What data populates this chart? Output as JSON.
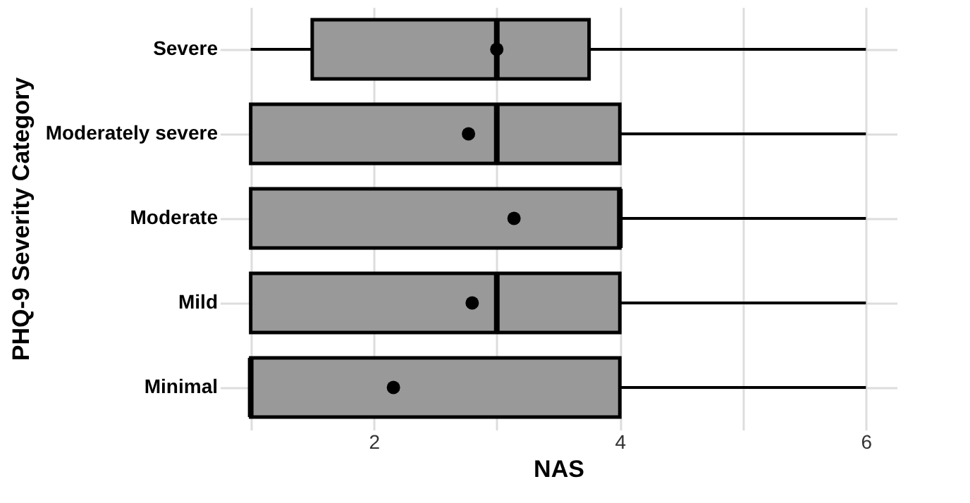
{
  "chart_data": {
    "type": "box",
    "orientation": "horizontal",
    "xlabel": "NAS",
    "ylabel": "PHQ-9 Severity Category",
    "categories": [
      "Severe",
      "Moderately severe",
      "Moderate",
      "Mild",
      "Minimal"
    ],
    "boxes": [
      {
        "low": 1,
        "q1": 1.5,
        "median": 3,
        "q3": 3.75,
        "high": 6,
        "mean": 3.0
      },
      {
        "low": 1,
        "q1": 1,
        "median": 3,
        "q3": 4,
        "high": 6,
        "mean": 2.77
      },
      {
        "low": 1,
        "q1": 1,
        "median": 4,
        "q3": 4,
        "high": 6,
        "mean": 3.14
      },
      {
        "low": 1,
        "q1": 1,
        "median": 3,
        "q3": 4,
        "high": 6,
        "mean": 2.8
      },
      {
        "low": 1,
        "q1": 1,
        "median": 1,
        "q3": 4,
        "high": 6,
        "mean": 2.16
      }
    ],
    "color": "#999999",
    "xlim": [
      0.75,
      6.25
    ],
    "xticks": [
      {
        "value": 1,
        "label": null
      },
      2,
      {
        "value": 3,
        "label": null
      },
      4,
      {
        "value": 5,
        "label": null
      },
      6
    ],
    "grid": true,
    "marker": "circle"
  }
}
